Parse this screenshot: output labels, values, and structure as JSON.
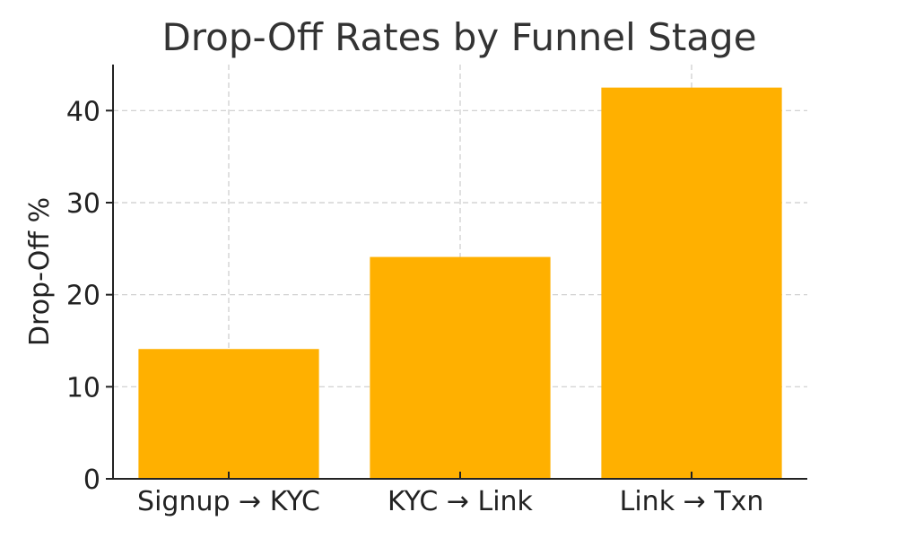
{
  "chart_data": {
    "type": "bar",
    "title": "Drop-Off Rates by Funnel Stage",
    "xlabel": "",
    "ylabel": "Drop-Off %",
    "categories": [
      "Signup → KYC",
      "KYC → Link",
      "Link → Txn"
    ],
    "values": [
      14.1,
      24.1,
      42.5
    ],
    "ylim": [
      0,
      45
    ],
    "yticks": [
      0,
      10,
      20,
      30,
      40
    ],
    "grid": true,
    "bar_color": "#FFB000",
    "grid_color": "#CCCCCC",
    "axis_color": "#222222"
  }
}
